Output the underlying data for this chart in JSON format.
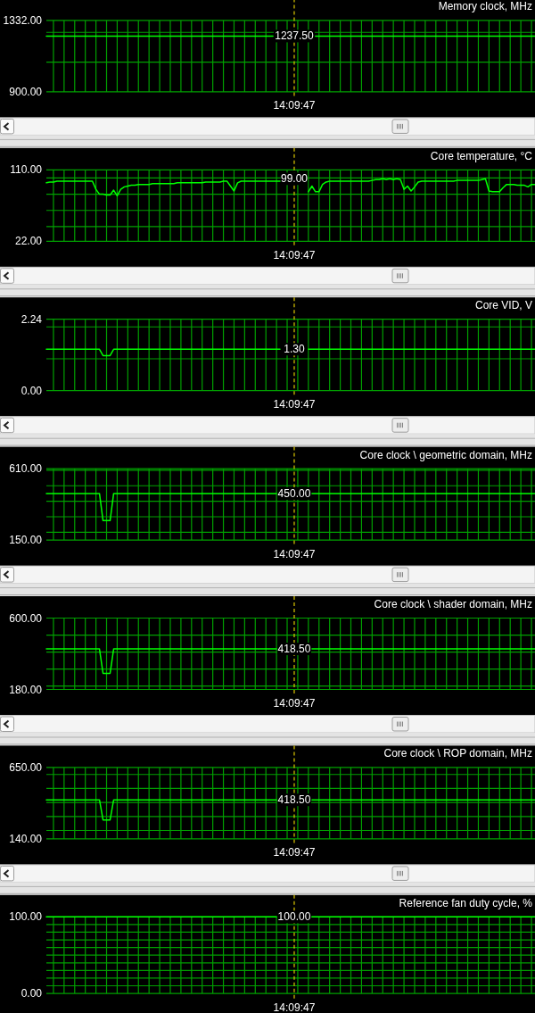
{
  "chart_data": [
    {
      "type": "line",
      "title": "Memory clock, MHz",
      "color": "#00ff00",
      "categories": [
        null,
        null,
        null,
        null,
        null,
        null,
        null,
        null,
        null,
        null,
        null,
        null,
        null,
        null,
        null,
        null,
        null,
        null,
        null,
        null,
        null,
        null,
        null,
        null,
        null,
        null,
        null,
        null,
        null,
        null,
        null,
        null,
        null,
        null,
        null,
        null,
        null,
        null,
        null,
        null,
        null,
        null,
        null,
        null,
        null,
        null,
        null,
        null,
        null,
        null,
        null,
        null,
        null,
        null,
        null,
        null,
        null,
        null,
        null,
        null,
        null,
        null,
        null,
        null,
        null,
        null,
        null,
        null,
        null,
        null,
        "14:09:47",
        null,
        null,
        null,
        null,
        null,
        null,
        null,
        null,
        null,
        null,
        null,
        null,
        null,
        null,
        null,
        null,
        null,
        null,
        null,
        null,
        null,
        null,
        null,
        null,
        null,
        null,
        null,
        null,
        null,
        null,
        null,
        null,
        null,
        null,
        null,
        null,
        null,
        null,
        null,
        null,
        null,
        null,
        null,
        null,
        null,
        null,
        null,
        null,
        null,
        null,
        null,
        null,
        null,
        null,
        null,
        null,
        null,
        null,
        null,
        null,
        null,
        null,
        null,
        null,
        null,
        null,
        null,
        null
      ],
      "values": [
        1237.5,
        1237.5,
        1237.5,
        1237.5,
        1237.5,
        1237.5,
        1237.5,
        1237.5,
        1237.5,
        1237.5,
        1237.5,
        1237.5,
        1237.5,
        1237.5,
        1237.5,
        1237.5,
        1237.5,
        1237.5,
        1237.5,
        1237.5,
        1237.5,
        1237.5,
        1237.5,
        1237.5,
        1237.5,
        1237.5,
        1237.5,
        1237.5,
        1237.5,
        1237.5,
        1237.5,
        1237.5,
        1237.5,
        1237.5,
        1237.5,
        1237.5,
        1237.5,
        1237.5,
        1237.5,
        1237.5,
        1237.5,
        1237.5,
        1237.5,
        1237.5,
        1237.5,
        1237.5,
        1237.5,
        1237.5,
        1237.5,
        1237.5,
        1237.5,
        1237.5,
        1237.5,
        1237.5,
        1237.5,
        1237.5,
        1237.5,
        1237.5,
        1237.5,
        1237.5,
        1237.5,
        1237.5,
        1237.5,
        1237.5,
        1237.5,
        null,
        null,
        null,
        null,
        null,
        null,
        null,
        null,
        null,
        null,
        null,
        1237.5,
        1237.5,
        1237.5,
        1237.5,
        1237.5,
        1237.5,
        1237.5,
        1237.5,
        1237.5,
        1237.5,
        1237.5,
        1237.5,
        1237.5,
        1237.5,
        1237.5,
        1237.5,
        1237.5,
        1237.5,
        1237.5,
        1237.5,
        1237.5,
        1237.5,
        1237.5,
        1237.5,
        1237.5,
        1237.5,
        1237.5,
        1237.5,
        1237.5,
        1237.5,
        1237.5,
        1237.5,
        1237.5,
        1237.5,
        1237.5,
        1237.5,
        1237.5,
        1237.5,
        1237.5,
        1237.5,
        1237.5,
        1237.5,
        1237.5,
        1237.5,
        1237.5,
        1237.5,
        1237.5,
        1237.5,
        1237.5,
        1237.5,
        1237.5,
        1237.5,
        1237.5,
        1237.5,
        1237.5,
        1237.5,
        1237.5,
        1237.5,
        1237.5,
        1237.5,
        1237.5,
        1237.5,
        1237.5
      ],
      "ylim": [
        900,
        1332
      ],
      "yticks": [
        {
          "value": 900,
          "label": "900.00"
        },
        {
          "value": 1080,
          "label": null
        },
        {
          "value": 1260,
          "label": null
        },
        {
          "value": 1332,
          "label": "1332.00"
        }
      ],
      "grid": true,
      "ref_lines": [
        {
          "axis": "x",
          "value": "14:09:47",
          "color": "#dcc800",
          "line_style": "dashed"
        }
      ],
      "annotations": [
        {
          "text": "1237.50",
          "x": "14:09:47",
          "y": 1237.5
        }
      ]
    },
    {
      "type": "line",
      "title": "Core temperature, °C",
      "color": "#00ff00",
      "categories": [
        null,
        null,
        null,
        null,
        null,
        null,
        null,
        null,
        null,
        null,
        null,
        null,
        null,
        null,
        null,
        null,
        null,
        null,
        null,
        null,
        null,
        null,
        null,
        null,
        null,
        null,
        null,
        null,
        null,
        null,
        null,
        null,
        null,
        null,
        null,
        null,
        null,
        null,
        null,
        null,
        null,
        null,
        null,
        null,
        null,
        null,
        null,
        null,
        null,
        null,
        null,
        null,
        null,
        null,
        null,
        null,
        null,
        null,
        null,
        null,
        null,
        null,
        null,
        null,
        null,
        null,
        null,
        null,
        null,
        null,
        "14:09:47",
        null,
        null,
        null,
        null,
        null,
        null,
        null,
        null,
        null,
        null,
        null,
        null,
        null,
        null,
        null,
        null,
        null,
        null,
        null,
        null,
        null,
        null,
        null,
        null,
        null,
        null,
        null,
        null,
        null,
        null,
        null,
        null,
        null,
        null,
        null,
        null,
        null,
        null,
        null,
        null,
        null,
        null,
        null,
        null,
        null,
        null,
        null,
        null,
        null,
        null,
        null,
        null,
        null,
        null,
        null,
        null,
        null,
        null,
        null,
        null,
        null,
        null,
        null,
        null,
        null,
        null,
        null,
        null
      ],
      "values": [
        94,
        95,
        95,
        96,
        96,
        96,
        96,
        96,
        96,
        96,
        96,
        96,
        96,
        96,
        86,
        80,
        80,
        79,
        79,
        85,
        78,
        86,
        89,
        90,
        91,
        91,
        92,
        92,
        92,
        92,
        93,
        93,
        93,
        93,
        93,
        93,
        93,
        94,
        94,
        94,
        94,
        94,
        94,
        94,
        94,
        95,
        95,
        95,
        95,
        95,
        96,
        96,
        90,
        84,
        94,
        96,
        96,
        96,
        96,
        96,
        96,
        96,
        96,
        96,
        96,
        96,
        96,
        null,
        null,
        null,
        null,
        null,
        null,
        null,
        83,
        90,
        83,
        83,
        92,
        95,
        96,
        96,
        96,
        96,
        96,
        96,
        96,
        96,
        96,
        96,
        96,
        96,
        97,
        98,
        98,
        99,
        98,
        99,
        98,
        99,
        98,
        86,
        90,
        84,
        89,
        95,
        96,
        96,
        96,
        96,
        96,
        96,
        96,
        96,
        96,
        96,
        97,
        97,
        97,
        97,
        97,
        97,
        97,
        98,
        99,
        84,
        83,
        83,
        83,
        88,
        92,
        92,
        92,
        91,
        91,
        91,
        89,
        92,
        92
      ],
      "ylim": [
        22,
        110
      ],
      "yticks": [
        {
          "value": 22,
          "label": "22.00"
        },
        {
          "value": 40,
          "label": null
        },
        {
          "value": 60,
          "label": null
        },
        {
          "value": 80,
          "label": null
        },
        {
          "value": 100,
          "label": null
        },
        {
          "value": 110,
          "label": "110.00"
        }
      ],
      "grid": true,
      "ref_lines": [
        {
          "axis": "x",
          "value": "14:09:47",
          "color": "#dcc800",
          "line_style": "dashed"
        }
      ],
      "annotations": [
        {
          "text": "99.00",
          "x": "14:09:47",
          "y": 99
        }
      ]
    },
    {
      "type": "line",
      "title": "Core VID, V",
      "color": "#00ff00",
      "categories": [
        null,
        null,
        null,
        null,
        null,
        null,
        null,
        null,
        null,
        null,
        null,
        null,
        null,
        null,
        null,
        null,
        null,
        null,
        null,
        null,
        null,
        null,
        null,
        null,
        null,
        null,
        null,
        null,
        null,
        null,
        null,
        null,
        null,
        null,
        null,
        null,
        null,
        null,
        null,
        null,
        null,
        null,
        null,
        null,
        null,
        null,
        null,
        null,
        null,
        null,
        null,
        null,
        null,
        null,
        null,
        null,
        null,
        null,
        null,
        null,
        null,
        null,
        null,
        null,
        null,
        null,
        null,
        null,
        null,
        null,
        "14:09:47",
        null,
        null,
        null,
        null,
        null,
        null,
        null,
        null,
        null,
        null,
        null,
        null,
        null,
        null,
        null,
        null,
        null,
        null,
        null,
        null,
        null,
        null,
        null,
        null,
        null,
        null,
        null,
        null,
        null,
        null,
        null,
        null,
        null,
        null,
        null,
        null,
        null,
        null,
        null,
        null,
        null,
        null,
        null,
        null,
        null,
        null,
        null,
        null,
        null,
        null,
        null,
        null,
        null,
        null,
        null,
        null,
        null,
        null,
        null,
        null,
        null,
        null,
        null,
        null,
        null,
        null,
        null,
        null
      ],
      "values": [
        1.3,
        1.3,
        1.3,
        1.3,
        1.3,
        1.3,
        1.3,
        1.3,
        1.3,
        1.3,
        1.3,
        1.3,
        1.3,
        1.3,
        1.3,
        1.3,
        1.1,
        1.1,
        1.1,
        1.3,
        1.3,
        1.3,
        1.3,
        1.3,
        1.3,
        1.3,
        1.3,
        1.3,
        1.3,
        1.3,
        1.3,
        1.3,
        1.3,
        1.3,
        1.3,
        1.3,
        1.3,
        1.3,
        1.3,
        1.3,
        1.3,
        1.3,
        1.3,
        1.3,
        1.3,
        1.3,
        1.3,
        1.3,
        1.3,
        1.3,
        1.3,
        1.3,
        1.3,
        1.3,
        1.3,
        1.3,
        1.3,
        1.3,
        1.3,
        1.3,
        1.3,
        1.3,
        1.3,
        1.3,
        1.3,
        1.3,
        1.3,
        null,
        null,
        null,
        null,
        null,
        null,
        null,
        1.3,
        1.3,
        1.3,
        1.3,
        1.3,
        1.3,
        1.3,
        1.3,
        1.3,
        1.3,
        1.3,
        1.3,
        1.3,
        1.3,
        1.3,
        1.3,
        1.3,
        1.3,
        1.3,
        1.3,
        1.3,
        1.3,
        1.3,
        1.3,
        1.3,
        1.3,
        1.3,
        1.3,
        1.3,
        1.3,
        1.3,
        1.3,
        1.3,
        1.3,
        1.3,
        1.3,
        1.3,
        1.3,
        1.3,
        1.3,
        1.3,
        1.3,
        1.3,
        1.3,
        1.3,
        1.3,
        1.3,
        1.3,
        1.3,
        1.3,
        1.3,
        1.3,
        1.3,
        1.3,
        1.3,
        1.3,
        1.3,
        1.3,
        1.3,
        1.3,
        1.3,
        1.3,
        1.3,
        1.3,
        1.3
      ],
      "ylim": [
        0,
        2.24
      ],
      "yticks": [
        {
          "value": 0,
          "label": "0.00"
        },
        {
          "value": 1,
          "label": null
        },
        {
          "value": 2,
          "label": null
        },
        {
          "value": 2.24,
          "label": "2.24"
        }
      ],
      "grid": true,
      "ref_lines": [
        {
          "axis": "x",
          "value": "14:09:47",
          "color": "#dcc800",
          "line_style": "dashed"
        }
      ],
      "annotations": [
        {
          "text": "1.30",
          "x": "14:09:47",
          "y": 1.3
        }
      ]
    },
    {
      "type": "line",
      "title": "Core clock \\ geometric domain, MHz",
      "color": "#00ff00",
      "categories": [
        null,
        null,
        null,
        null,
        null,
        null,
        null,
        null,
        null,
        null,
        null,
        null,
        null,
        null,
        null,
        null,
        null,
        null,
        null,
        null,
        null,
        null,
        null,
        null,
        null,
        null,
        null,
        null,
        null,
        null,
        null,
        null,
        null,
        null,
        null,
        null,
        null,
        null,
        null,
        null,
        null,
        null,
        null,
        null,
        null,
        null,
        null,
        null,
        null,
        null,
        null,
        null,
        null,
        null,
        null,
        null,
        null,
        null,
        null,
        null,
        null,
        null,
        null,
        null,
        null,
        null,
        null,
        null,
        null,
        null,
        "14:09:47",
        null,
        null,
        null,
        null,
        null,
        null,
        null,
        null,
        null,
        null,
        null,
        null,
        null,
        null,
        null,
        null,
        null,
        null,
        null,
        null,
        null,
        null,
        null,
        null,
        null,
        null,
        null,
        null,
        null,
        null,
        null,
        null,
        null,
        null,
        null,
        null,
        null,
        null,
        null,
        null,
        null,
        null,
        null,
        null,
        null,
        null,
        null,
        null,
        null,
        null,
        null,
        null,
        null,
        null,
        null,
        null,
        null,
        null,
        null,
        null,
        null,
        null,
        null,
        null,
        null,
        null,
        null,
        null
      ],
      "values": [
        450,
        450,
        450,
        450,
        450,
        450,
        450,
        450,
        450,
        450,
        450,
        450,
        450,
        450,
        450,
        450,
        275,
        275,
        275,
        450,
        450,
        450,
        450,
        450,
        450,
        450,
        450,
        450,
        450,
        450,
        450,
        450,
        450,
        450,
        450,
        450,
        450,
        450,
        450,
        450,
        450,
        450,
        450,
        450,
        450,
        450,
        450,
        450,
        450,
        450,
        450,
        450,
        450,
        450,
        450,
        450,
        450,
        450,
        450,
        450,
        450,
        450,
        450,
        450,
        450,
        450,
        null,
        null,
        null,
        null,
        null,
        null,
        null,
        null,
        null,
        450,
        450,
        450,
        450,
        450,
        450,
        450,
        450,
        450,
        450,
        450,
        450,
        450,
        450,
        450,
        450,
        450,
        450,
        450,
        450,
        450,
        450,
        450,
        450,
        450,
        450,
        450,
        450,
        450,
        450,
        450,
        450,
        450,
        450,
        450,
        450,
        450,
        450,
        450,
        450,
        450,
        450,
        450,
        450,
        450,
        450,
        450,
        450,
        450,
        450,
        450,
        450,
        450,
        450,
        450,
        450,
        450,
        450,
        450,
        450,
        450,
        450,
        450,
        450
      ],
      "ylim": [
        150,
        610
      ],
      "yticks": [
        {
          "value": 150,
          "label": "150.00"
        },
        {
          "value": 200,
          "label": null
        },
        {
          "value": 300,
          "label": null
        },
        {
          "value": 400,
          "label": null
        },
        {
          "value": 500,
          "label": null
        },
        {
          "value": 600,
          "label": null
        },
        {
          "value": 610,
          "label": "610.00"
        }
      ],
      "grid": true,
      "ref_lines": [
        {
          "axis": "x",
          "value": "14:09:47",
          "color": "#dcc800",
          "line_style": "dashed"
        }
      ],
      "annotations": [
        {
          "text": "450.00",
          "x": "14:09:47",
          "y": 450
        }
      ]
    },
    {
      "type": "line",
      "title": "Core clock \\ shader domain, MHz",
      "color": "#00ff00",
      "categories": [
        null,
        null,
        null,
        null,
        null,
        null,
        null,
        null,
        null,
        null,
        null,
        null,
        null,
        null,
        null,
        null,
        null,
        null,
        null,
        null,
        null,
        null,
        null,
        null,
        null,
        null,
        null,
        null,
        null,
        null,
        null,
        null,
        null,
        null,
        null,
        null,
        null,
        null,
        null,
        null,
        null,
        null,
        null,
        null,
        null,
        null,
        null,
        null,
        null,
        null,
        null,
        null,
        null,
        null,
        null,
        null,
        null,
        null,
        null,
        null,
        null,
        null,
        null,
        null,
        null,
        null,
        null,
        null,
        null,
        null,
        "14:09:47",
        null,
        null,
        null,
        null,
        null,
        null,
        null,
        null,
        null,
        null,
        null,
        null,
        null,
        null,
        null,
        null,
        null,
        null,
        null,
        null,
        null,
        null,
        null,
        null,
        null,
        null,
        null,
        null,
        null,
        null,
        null,
        null,
        null,
        null,
        null,
        null,
        null,
        null,
        null,
        null,
        null,
        null,
        null,
        null,
        null,
        null,
        null,
        null,
        null,
        null,
        null,
        null,
        null,
        null,
        null,
        null,
        null,
        null,
        null,
        null,
        null,
        null,
        null,
        null,
        null,
        null,
        null,
        null
      ],
      "values": [
        418.5,
        418.5,
        418.5,
        418.5,
        418.5,
        418.5,
        418.5,
        418.5,
        418.5,
        418.5,
        418.5,
        418.5,
        418.5,
        418.5,
        418.5,
        418.5,
        275,
        275,
        275,
        418.5,
        418.5,
        418.5,
        418.5,
        418.5,
        418.5,
        418.5,
        418.5,
        418.5,
        418.5,
        418.5,
        418.5,
        418.5,
        418.5,
        418.5,
        418.5,
        418.5,
        418.5,
        418.5,
        418.5,
        418.5,
        418.5,
        418.5,
        418.5,
        418.5,
        418.5,
        418.5,
        418.5,
        418.5,
        418.5,
        418.5,
        418.5,
        418.5,
        418.5,
        418.5,
        418.5,
        418.5,
        418.5,
        418.5,
        418.5,
        418.5,
        418.5,
        418.5,
        418.5,
        418.5,
        418.5,
        418.5,
        null,
        null,
        null,
        null,
        null,
        null,
        null,
        null,
        null,
        418.5,
        418.5,
        418.5,
        418.5,
        418.5,
        418.5,
        418.5,
        418.5,
        418.5,
        418.5,
        418.5,
        418.5,
        418.5,
        418.5,
        418.5,
        418.5,
        418.5,
        418.5,
        418.5,
        418.5,
        418.5,
        418.5,
        418.5,
        418.5,
        418.5,
        418.5,
        418.5,
        418.5,
        418.5,
        418.5,
        418.5,
        418.5,
        418.5,
        418.5,
        418.5,
        418.5,
        418.5,
        418.5,
        418.5,
        418.5,
        418.5,
        418.5,
        418.5,
        418.5,
        418.5,
        418.5,
        418.5,
        418.5,
        418.5,
        418.5,
        418.5,
        418.5,
        418.5,
        418.5,
        418.5,
        418.5,
        418.5,
        418.5,
        418.5,
        418.5,
        418.5,
        418.5,
        418.5,
        418.5
      ],
      "ylim": [
        180,
        600
      ],
      "yticks": [
        {
          "value": 180,
          "label": "180.00"
        },
        {
          "value": 200,
          "label": null
        },
        {
          "value": 300,
          "label": null
        },
        {
          "value": 400,
          "label": null
        },
        {
          "value": 500,
          "label": null
        },
        {
          "value": 600,
          "label": "600.00"
        }
      ],
      "grid": true,
      "ref_lines": [
        {
          "axis": "x",
          "value": "14:09:47",
          "color": "#dcc800",
          "line_style": "dashed"
        }
      ],
      "annotations": [
        {
          "text": "418.50",
          "x": "14:09:47",
          "y": 418.5
        }
      ]
    },
    {
      "type": "line",
      "title": "Core clock \\ ROP domain, MHz",
      "color": "#00ff00",
      "categories": [
        null,
        null,
        null,
        null,
        null,
        null,
        null,
        null,
        null,
        null,
        null,
        null,
        null,
        null,
        null,
        null,
        null,
        null,
        null,
        null,
        null,
        null,
        null,
        null,
        null,
        null,
        null,
        null,
        null,
        null,
        null,
        null,
        null,
        null,
        null,
        null,
        null,
        null,
        null,
        null,
        null,
        null,
        null,
        null,
        null,
        null,
        null,
        null,
        null,
        null,
        null,
        null,
        null,
        null,
        null,
        null,
        null,
        null,
        null,
        null,
        null,
        null,
        null,
        null,
        null,
        null,
        null,
        null,
        null,
        null,
        "14:09:47",
        null,
        null,
        null,
        null,
        null,
        null,
        null,
        null,
        null,
        null,
        null,
        null,
        null,
        null,
        null,
        null,
        null,
        null,
        null,
        null,
        null,
        null,
        null,
        null,
        null,
        null,
        null,
        null,
        null,
        null,
        null,
        null,
        null,
        null,
        null,
        null,
        null,
        null,
        null,
        null,
        null,
        null,
        null,
        null,
        null,
        null,
        null,
        null,
        null,
        null,
        null,
        null,
        null,
        null,
        null,
        null,
        null,
        null,
        null,
        null,
        null,
        null,
        null,
        null,
        null,
        null,
        null,
        null
      ],
      "values": [
        418.5,
        418.5,
        418.5,
        418.5,
        418.5,
        418.5,
        418.5,
        418.5,
        418.5,
        418.5,
        418.5,
        418.5,
        418.5,
        418.5,
        418.5,
        418.5,
        275,
        275,
        275,
        418.5,
        418.5,
        418.5,
        418.5,
        418.5,
        418.5,
        418.5,
        418.5,
        418.5,
        418.5,
        418.5,
        418.5,
        418.5,
        418.5,
        418.5,
        418.5,
        418.5,
        418.5,
        418.5,
        418.5,
        418.5,
        418.5,
        418.5,
        418.5,
        418.5,
        418.5,
        418.5,
        418.5,
        418.5,
        418.5,
        418.5,
        418.5,
        418.5,
        418.5,
        418.5,
        418.5,
        418.5,
        418.5,
        418.5,
        418.5,
        418.5,
        418.5,
        418.5,
        418.5,
        418.5,
        418.5,
        418.5,
        null,
        null,
        null,
        null,
        null,
        null,
        null,
        null,
        null,
        418.5,
        418.5,
        418.5,
        418.5,
        418.5,
        418.5,
        418.5,
        418.5,
        418.5,
        418.5,
        418.5,
        418.5,
        418.5,
        418.5,
        418.5,
        418.5,
        418.5,
        418.5,
        418.5,
        418.5,
        418.5,
        418.5,
        418.5,
        418.5,
        418.5,
        418.5,
        418.5,
        418.5,
        418.5,
        418.5,
        418.5,
        418.5,
        418.5,
        418.5,
        418.5,
        418.5,
        418.5,
        418.5,
        418.5,
        418.5,
        418.5,
        418.5,
        418.5,
        418.5,
        418.5,
        418.5,
        418.5,
        418.5,
        418.5,
        418.5,
        418.5,
        418.5,
        418.5,
        418.5,
        418.5,
        418.5,
        418.5,
        418.5,
        418.5,
        418.5,
        418.5,
        418.5,
        418.5,
        418.5
      ],
      "ylim": [
        140,
        650
      ],
      "yticks": [
        {
          "value": 140,
          "label": "140.00"
        },
        {
          "value": 200,
          "label": null
        },
        {
          "value": 300,
          "label": null
        },
        {
          "value": 400,
          "label": null
        },
        {
          "value": 500,
          "label": null
        },
        {
          "value": 600,
          "label": null
        },
        {
          "value": 650,
          "label": "650.00"
        }
      ],
      "grid": true,
      "ref_lines": [
        {
          "axis": "x",
          "value": "14:09:47",
          "color": "#dcc800",
          "line_style": "dashed"
        }
      ],
      "annotations": [
        {
          "text": "418.50",
          "x": "14:09:47",
          "y": 418.5
        }
      ]
    },
    {
      "type": "line",
      "title": "Reference fan duty cycle, %",
      "color": "#00ff00",
      "categories": [
        null,
        null,
        null,
        null,
        null,
        null,
        null,
        null,
        null,
        null,
        null,
        null,
        null,
        null,
        null,
        null,
        null,
        null,
        null,
        null,
        null,
        null,
        null,
        null,
        null,
        null,
        null,
        null,
        null,
        null,
        null,
        null,
        null,
        null,
        null,
        null,
        null,
        null,
        null,
        null,
        null,
        null,
        null,
        null,
        null,
        null,
        null,
        null,
        null,
        null,
        null,
        null,
        null,
        null,
        null,
        null,
        null,
        null,
        null,
        null,
        null,
        null,
        null,
        null,
        null,
        null,
        null,
        null,
        null,
        null,
        "14:09:47",
        null,
        null,
        null,
        null,
        null,
        null,
        null,
        null,
        null,
        null,
        null,
        null,
        null,
        null,
        null,
        null,
        null,
        null,
        null,
        null,
        null,
        null,
        null,
        null,
        null,
        null,
        null,
        null,
        null,
        null,
        null,
        null,
        null,
        null,
        null,
        null,
        null,
        null,
        null,
        null,
        null,
        null,
        null,
        null,
        null,
        null,
        null,
        null,
        null,
        null,
        null,
        null,
        null,
        null,
        null,
        null,
        null,
        null,
        null,
        null,
        null,
        null,
        null,
        null,
        null,
        null,
        null,
        null
      ],
      "values": [
        100,
        100,
        100,
        100,
        100,
        100,
        100,
        100,
        100,
        100,
        100,
        100,
        100,
        100,
        100,
        100,
        100,
        100,
        100,
        100,
        100,
        100,
        100,
        100,
        100,
        100,
        100,
        100,
        100,
        100,
        100,
        100,
        100,
        100,
        100,
        100,
        100,
        100,
        100,
        100,
        100,
        100,
        100,
        100,
        100,
        100,
        100,
        100,
        100,
        100,
        100,
        100,
        100,
        100,
        100,
        100,
        100,
        100,
        100,
        100,
        100,
        100,
        100,
        100,
        100,
        100,
        null,
        null,
        null,
        null,
        null,
        null,
        null,
        null,
        null,
        100,
        100,
        100,
        100,
        100,
        100,
        100,
        100,
        100,
        100,
        100,
        100,
        100,
        100,
        100,
        100,
        100,
        100,
        100,
        100,
        100,
        100,
        100,
        100,
        100,
        100,
        100,
        100,
        100,
        100,
        100,
        100,
        100,
        100,
        100,
        100,
        100,
        100,
        100,
        100,
        100,
        100,
        100,
        100,
        100,
        100,
        100,
        100,
        100,
        100,
        100,
        100,
        100,
        100,
        100,
        100,
        100,
        100,
        100,
        100,
        100,
        100,
        100,
        100
      ],
      "ylim": [
        0,
        100
      ],
      "yticks": [
        {
          "value": 0,
          "label": "0.00"
        },
        {
          "value": 10,
          "label": null
        },
        {
          "value": 20,
          "label": null
        },
        {
          "value": 30,
          "label": null
        },
        {
          "value": 40,
          "label": null
        },
        {
          "value": 50,
          "label": null
        },
        {
          "value": 60,
          "label": null
        },
        {
          "value": 70,
          "label": null
        },
        {
          "value": 80,
          "label": null
        },
        {
          "value": 90,
          "label": null
        },
        {
          "value": 100,
          "label": "100.00"
        }
      ],
      "grid": true,
      "ref_lines": [
        {
          "axis": "x",
          "value": "14:09:47",
          "color": "#dcc800",
          "line_style": "dashed"
        }
      ],
      "annotations": [
        {
          "text": "100.00",
          "x": "14:09:47",
          "y": 100
        }
      ]
    }
  ]
}
